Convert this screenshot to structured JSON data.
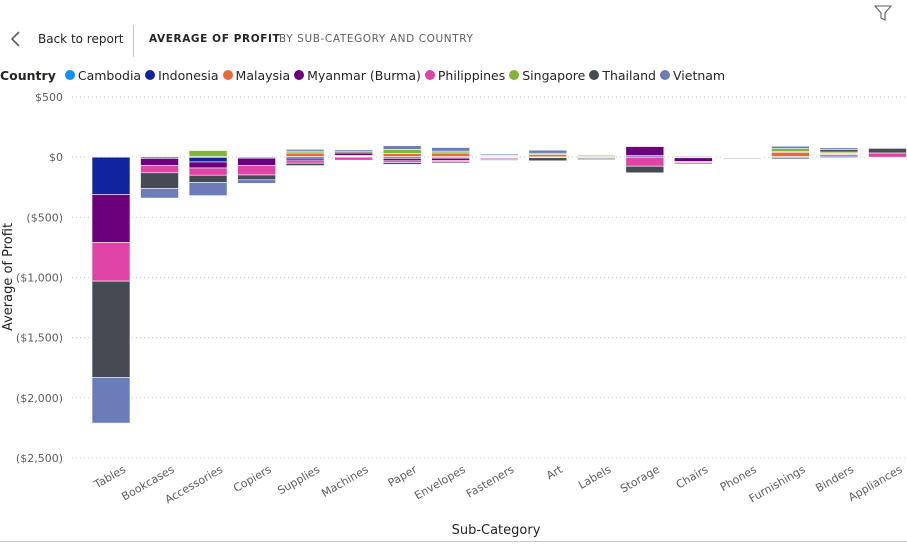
{
  "header": {
    "back_label": "Back to report",
    "title": "AVERAGE OF PROFIT",
    "subtitle": "BY SUB-CATEGORY AND COUNTRY",
    "back_icon": "chevron-left-icon",
    "filter_icon": "filter-icon"
  },
  "legend": {
    "title": "Country",
    "items": [
      {
        "label": "Cambodia",
        "color": "#118DFF"
      },
      {
        "label": "Indonesia",
        "color": "#12239E"
      },
      {
        "label": "Malaysia",
        "color": "#E66C37"
      },
      {
        "label": "Myanmar (Burma)",
        "color": "#6B007B"
      },
      {
        "label": "Philippines",
        "color": "#E044A7"
      },
      {
        "label": "Singapore",
        "color": "#7FB539"
      },
      {
        "label": "Thailand",
        "color": "#464B52"
      },
      {
        "label": "Vietnam",
        "color": "#6B7DB8"
      }
    ]
  },
  "chart_data": {
    "type": "bar",
    "stacked": true,
    "xlabel": "Sub-Category",
    "ylabel": "Average of Profit",
    "ylim": [
      -2500,
      500
    ],
    "yticks": [
      500,
      0,
      -500,
      -1000,
      -1500,
      -2000,
      -2500
    ],
    "ytick_labels": [
      "$500",
      "$0",
      "($500)",
      "($1,000)",
      "($1,500)",
      "($2,000)",
      "($2,500)"
    ],
    "grid": true,
    "legend_position": "top-left",
    "categories": [
      "Tables",
      "Bookcases",
      "Accessories",
      "Copiers",
      "Supplies",
      "Machines",
      "Paper",
      "Envelopes",
      "Fasteners",
      "Art",
      "Labels",
      "Storage",
      "Chairs",
      "Phones",
      "Furnishings",
      "Binders",
      "Appliances"
    ],
    "series": [
      {
        "name": "Cambodia",
        "values": [
          0,
          0,
          0,
          0,
          5,
          5,
          5,
          5,
          2,
          3,
          1,
          3,
          2,
          1,
          3,
          -8,
          0
        ]
      },
      {
        "name": "Indonesia",
        "values": [
          -310,
          -10,
          -40,
          -8,
          -15,
          5,
          -10,
          -8,
          -5,
          -5,
          -2,
          10,
          -5,
          0,
          3,
          8,
          0
        ]
      },
      {
        "name": "Malaysia",
        "values": [
          0,
          0,
          5,
          0,
          30,
          5,
          25,
          30,
          8,
          20,
          5,
          0,
          5,
          2,
          35,
          15,
          0
        ]
      },
      {
        "name": "Myanmar (Burma)",
        "values": [
          -400,
          -60,
          -50,
          -60,
          -15,
          20,
          -20,
          -18,
          -8,
          0,
          -5,
          75,
          -30,
          -3,
          -8,
          5,
          0
        ]
      },
      {
        "name": "Philippines",
        "values": [
          -320,
          -60,
          -60,
          -80,
          -20,
          -25,
          -15,
          -12,
          -6,
          0,
          -3,
          -75,
          -10,
          -2,
          5,
          5,
          35
        ]
      },
      {
        "name": "Singapore",
        "values": [
          0,
          0,
          50,
          0,
          15,
          0,
          35,
          15,
          5,
          10,
          10,
          0,
          0,
          0,
          25,
          10,
          0
        ]
      },
      {
        "name": "Thailand",
        "values": [
          -800,
          -130,
          -60,
          -40,
          -20,
          10,
          -15,
          -10,
          -8,
          -25,
          -10,
          -55,
          -10,
          -3,
          -10,
          20,
          38
        ]
      },
      {
        "name": "Vietnam",
        "values": [
          -380,
          -80,
          -110,
          -30,
          15,
          15,
          30,
          30,
          10,
          25,
          5,
          0,
          5,
          0,
          20,
          15,
          0
        ]
      }
    ]
  }
}
